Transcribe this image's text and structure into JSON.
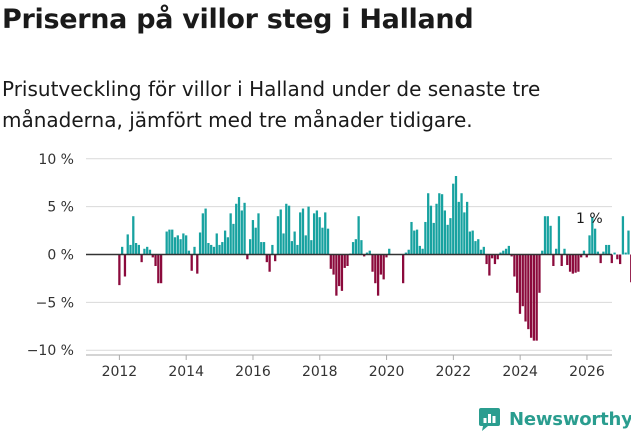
{
  "title": "Priserna på villor steg i Halland",
  "subtitle": "Prisutveckling för villor i Halland under de senaste tre månaderna, jämfört med tre månader tidigare.",
  "brand": {
    "name": "Newsworthy",
    "icon": "newsworthy-logo-icon"
  },
  "colors": {
    "positive": "#17a2a0",
    "negative": "#8b0a3c",
    "grid": "#d9d9d9",
    "zero_line": "#333333",
    "brand": "#2a9d8f"
  },
  "chart_data": {
    "type": "bar",
    "ylim": [
      -10.5,
      10.5
    ],
    "yticks": [
      10,
      5,
      0,
      -5,
      -10
    ],
    "ytick_labels": [
      "10 %",
      "5 %",
      "0 %",
      "−5 %",
      "−10 %"
    ],
    "xlim": [
      2011.0,
      2026.75
    ],
    "xticks": [
      2012,
      2014,
      2016,
      2018,
      2020,
      2022,
      2024,
      2026
    ],
    "xtick_labels": [
      "2012",
      "2014",
      "2016",
      "2018",
      "2020",
      "2022",
      "2024",
      "2026"
    ],
    "x_start": 2011.0,
    "step": 0.0833,
    "values": [
      0,
      0,
      0,
      0,
      0,
      0,
      0,
      0,
      0,
      0,
      0,
      0,
      -3.2,
      0.8,
      -2.3,
      2.1,
      1.0,
      4.0,
      1.2,
      1.0,
      -0.8,
      0.6,
      0.8,
      0.5,
      -0.3,
      -1.2,
      -3.0,
      -3.0,
      0,
      2.4,
      2.6,
      2.6,
      1.8,
      2.0,
      1.6,
      2.2,
      2.0,
      0.4,
      -1.7,
      0.8,
      -2.0,
      2.3,
      4.3,
      4.8,
      1.2,
      1.0,
      0.8,
      2.2,
      1.0,
      1.3,
      2.5,
      1.8,
      4.3,
      3.2,
      5.3,
      6.0,
      4.6,
      5.4,
      -0.5,
      1.6,
      3.6,
      2.8,
      4.3,
      1.3,
      1.3,
      -0.8,
      -1.8,
      1.0,
      -0.7,
      4.0,
      4.7,
      2.2,
      5.3,
      5.1,
      1.4,
      2.4,
      1.0,
      4.4,
      4.8,
      2.0,
      5.0,
      1.5,
      4.3,
      4.6,
      3.9,
      2.8,
      4.4,
      2.7,
      -1.5,
      -2.1,
      -4.3,
      -3.3,
      -3.8,
      -1.4,
      -1.2,
      0.1,
      1.3,
      1.6,
      4.0,
      1.5,
      -0.2,
      0.2,
      0.4,
      -1.8,
      -3.0,
      -4.3,
      -2.1,
      -2.6,
      -0.3,
      0.6,
      0,
      0,
      0,
      0,
      -3.0,
      0.2,
      0.5,
      3.4,
      2.5,
      2.6,
      0.9,
      0.6,
      3.4,
      6.4,
      5.1,
      3.3,
      5.3,
      6.4,
      6.3,
      4.6,
      3.1,
      3.8,
      7.4,
      8.2,
      5.5,
      6.4,
      4.4,
      5.5,
      2.4,
      2.5,
      1.4,
      1.6,
      0.5,
      0.8,
      -1.0,
      -2.2,
      -0.4,
      -1.0,
      -0.5,
      0.2,
      0.4,
      0.6,
      0.9,
      -0.2,
      -2.3,
      -4.0,
      -6.2,
      -5.4,
      -7.0,
      -7.8,
      -8.7,
      -9.0,
      -9.0,
      -4.0,
      0.4,
      4.0,
      4.0,
      3.0,
      -1.2,
      0.6,
      4.0,
      -1.2,
      0.6,
      -1.1,
      -1.8,
      -2.0,
      -1.9,
      -1.8,
      -0.3,
      0.4,
      -0.3,
      2.0,
      3.9,
      2.7,
      0.3,
      -0.9,
      0.3,
      1.0,
      1.0,
      -0.9,
      0.2,
      -0.5,
      -1.0,
      4.0,
      0.2,
      2.5,
      -2.9,
      -2.0,
      -1.1,
      -0.9,
      0.4,
      1.0,
      2.5,
      1.0,
      1.0,
      1.0
    ],
    "annotation": {
      "text": "1 %",
      "x": 2025.833,
      "value": 1.0
    }
  }
}
